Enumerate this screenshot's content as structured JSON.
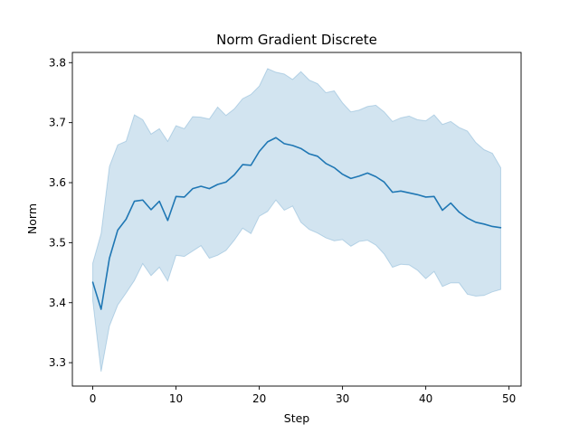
{
  "chart_data": {
    "type": "line",
    "title": "Norm Gradient Discrete",
    "xlabel": "Step",
    "ylabel": "Norm",
    "xlim": [
      -2.45,
      51.45
    ],
    "ylim": [
      3.261,
      3.817
    ],
    "xticks": [
      0,
      10,
      20,
      30,
      40,
      50
    ],
    "yticks": [
      3.3,
      3.4,
      3.5,
      3.6,
      3.7,
      3.8
    ],
    "xtick_labels": [
      "0",
      "10",
      "20",
      "30",
      "40",
      "50"
    ],
    "ytick_labels": [
      "3.3",
      "3.4",
      "3.5",
      "3.6",
      "3.7",
      "3.8"
    ],
    "grid": false,
    "legend": "none",
    "colors": {
      "line": "#1f77b4",
      "band": "#1f77b4",
      "band_opacity": 0.2
    },
    "series": [
      {
        "x": [
          0,
          1,
          2,
          3,
          4,
          5,
          6,
          7,
          8,
          9,
          10,
          11,
          12,
          13,
          14,
          15,
          16,
          17,
          18,
          19,
          20,
          21,
          22,
          23,
          24,
          25,
          26,
          27,
          28,
          29,
          30,
          31,
          32,
          33,
          34,
          35,
          36,
          37,
          38,
          39,
          40,
          41,
          42,
          43,
          44,
          45,
          46,
          47,
          48,
          49
        ],
        "y": [
          3.434,
          3.389,
          3.474,
          3.521,
          3.539,
          3.569,
          3.571,
          3.555,
          3.569,
          3.537,
          3.577,
          3.576,
          3.59,
          3.594,
          3.59,
          3.597,
          3.601,
          3.613,
          3.63,
          3.629,
          3.652,
          3.668,
          3.675,
          3.665,
          3.662,
          3.657,
          3.648,
          3.644,
          3.632,
          3.625,
          3.614,
          3.607,
          3.611,
          3.616,
          3.61,
          3.601,
          3.584,
          3.586,
          3.583,
          3.58,
          3.576,
          3.577,
          3.554,
          3.566,
          3.551,
          3.541,
          3.534,
          3.531,
          3.527,
          3.525
        ],
        "lower": [
          3.403,
          3.285,
          3.361,
          3.396,
          3.416,
          3.437,
          3.465,
          3.445,
          3.459,
          3.436,
          3.479,
          3.477,
          3.486,
          3.495,
          3.474,
          3.479,
          3.487,
          3.504,
          3.524,
          3.515,
          3.544,
          3.552,
          3.571,
          3.554,
          3.561,
          3.534,
          3.522,
          3.516,
          3.508,
          3.503,
          3.505,
          3.494,
          3.502,
          3.504,
          3.496,
          3.481,
          3.459,
          3.464,
          3.463,
          3.454,
          3.44,
          3.452,
          3.427,
          3.433,
          3.433,
          3.414,
          3.411,
          3.412,
          3.418,
          3.422
        ],
        "upper": [
          3.466,
          3.515,
          3.627,
          3.663,
          3.669,
          3.713,
          3.705,
          3.681,
          3.69,
          3.669,
          3.695,
          3.69,
          3.71,
          3.709,
          3.706,
          3.726,
          3.712,
          3.723,
          3.74,
          3.747,
          3.761,
          3.79,
          3.784,
          3.781,
          3.772,
          3.785,
          3.771,
          3.765,
          3.75,
          3.753,
          3.733,
          3.718,
          3.721,
          3.727,
          3.729,
          3.718,
          3.702,
          3.708,
          3.711,
          3.705,
          3.703,
          3.713,
          3.697,
          3.702,
          3.692,
          3.686,
          3.667,
          3.655,
          3.649,
          3.625
        ]
      }
    ]
  }
}
